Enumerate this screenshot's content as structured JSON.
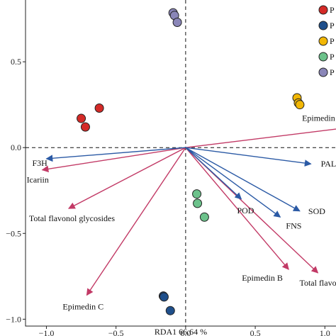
{
  "chart_data": {
    "type": "scatter",
    "xlabel": "RDA1 66.64 %",
    "ylabel": "",
    "xlim": [
      -1.15,
      1.08
    ],
    "ylim": [
      -1.04,
      0.86
    ],
    "x_ticks": [
      -1.0,
      -0.5,
      0.0,
      0.5,
      1.0
    ],
    "x_tick_labels": [
      "−1.0",
      "−0.5",
      "0.0",
      "0.5",
      "1.0"
    ],
    "y_ticks": [
      -1.0,
      -0.5,
      0.0,
      0.5
    ],
    "y_tick_labels": [
      "−1.0",
      "−0.5",
      "0.0",
      "0.5"
    ],
    "grid": false,
    "legend_position": "top-right",
    "series": [
      {
        "name": "P",
        "color": "#d42a27",
        "points": [
          [
            -0.75,
            0.17
          ],
          [
            -0.72,
            0.12
          ],
          [
            -0.62,
            0.23
          ]
        ]
      },
      {
        "name": "P",
        "color": "#1f4f8b",
        "points": [
          [
            -0.16,
            -0.865
          ],
          [
            -0.155,
            -0.87
          ],
          [
            -0.11,
            -0.95
          ]
        ]
      },
      {
        "name": "P",
        "color": "#f2b705",
        "points": [
          [
            0.8,
            0.29
          ],
          [
            0.81,
            0.26
          ],
          [
            0.82,
            0.25
          ]
        ]
      },
      {
        "name": "P",
        "color": "#6cc28b",
        "points": [
          [
            0.08,
            -0.27
          ],
          [
            0.085,
            -0.325
          ],
          [
            0.135,
            -0.405
          ]
        ]
      },
      {
        "name": "P",
        "color": "#8a86b8",
        "points": [
          [
            -0.09,
            0.785
          ],
          [
            -0.08,
            0.77
          ],
          [
            -0.06,
            0.73
          ]
        ]
      }
    ],
    "vectors_blue": [
      {
        "label": "F3H",
        "x": -1.0,
        "y": -0.065
      },
      {
        "label": "PAL",
        "x": 0.9,
        "y": -0.095
      },
      {
        "label": "POD",
        "x": 0.4,
        "y": -0.3
      },
      {
        "label": "FNS",
        "x": 0.68,
        "y": -0.405
      },
      {
        "label": "SOD",
        "x": 0.82,
        "y": -0.37
      }
    ],
    "vectors_red": [
      {
        "label": "Epimedin A",
        "x": 1.15,
        "y": 0.115
      },
      {
        "label": "Icariin",
        "x": -1.03,
        "y": -0.13
      },
      {
        "label": "Total flavonol glycosides",
        "x": -0.84,
        "y": -0.355
      },
      {
        "label": "Epimedin C",
        "x": -0.71,
        "y": -0.86
      },
      {
        "label": "Epimedin B",
        "x": 0.74,
        "y": -0.71
      },
      {
        "label": "Total flavonoids",
        "x": 0.95,
        "y": -0.73
      }
    ],
    "colors": {
      "blue_vector": "#2b5aa5",
      "red_vector": "#c23a66"
    }
  }
}
